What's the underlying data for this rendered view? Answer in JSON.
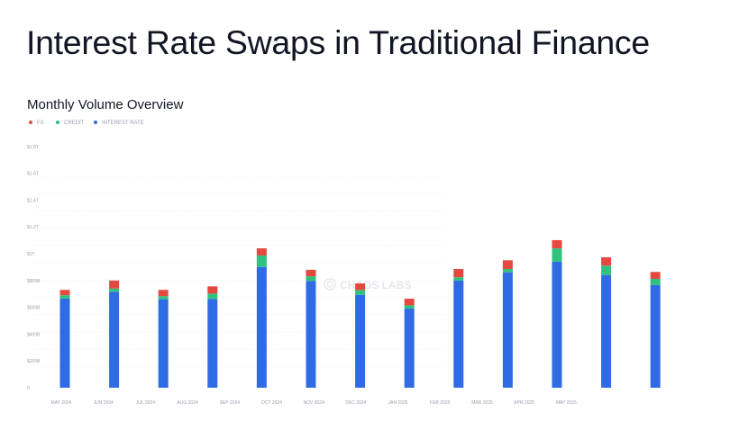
{
  "title": "Interest Rate Swaps in Traditional Finance",
  "watermark": "CHAOS LABS",
  "chart_data": {
    "type": "bar",
    "stacked": true,
    "title": "Monthly Volume Overview",
    "xlabel": "",
    "ylabel": "",
    "legend_position": "top-left",
    "grid": true,
    "ylim": [
      0,
      1800
    ],
    "y_unit": "billions USD",
    "y_ticks": [
      {
        "value": 0,
        "label": "0"
      },
      {
        "value": 200,
        "label": "$200B"
      },
      {
        "value": 400,
        "label": "$400B"
      },
      {
        "value": 600,
        "label": "$600B"
      },
      {
        "value": 800,
        "label": "$800B"
      },
      {
        "value": 1000,
        "label": "$1T"
      },
      {
        "value": 1200,
        "label": "$1.2T"
      },
      {
        "value": 1400,
        "label": "$1.4T"
      },
      {
        "value": 1600,
        "label": "$1.6T"
      },
      {
        "value": 1800,
        "label": "$1.8T"
      }
    ],
    "categories": [
      "MAY 2024",
      "JUN 2024",
      "JUL 2024",
      "AUG 2024",
      "SEP 2024",
      "OCT 2024",
      "NOV 2024",
      "DEC 2024",
      "JAN 2025",
      "FEB 2025",
      "MAR 2025",
      "APR 2025",
      "MAY 2025"
    ],
    "series": [
      {
        "name": "INTEREST RATE",
        "color": "#2f6be4",
        "values": [
          665,
          716,
          660,
          662,
          901,
          797,
          693,
          590,
          799,
          861,
          940,
          841,
          767
        ]
      },
      {
        "name": "CREDIT",
        "color": "#2ec27e",
        "values": [
          25,
          24,
          23,
          40,
          85,
          34,
          36,
          25,
          25,
          25,
          99,
          70,
          45
        ]
      },
      {
        "name": "FX",
        "color": "#e5483f",
        "values": [
          40,
          60,
          47,
          54,
          54,
          49,
          49,
          49,
          62,
          65,
          62,
          62,
          52
        ]
      }
    ]
  }
}
